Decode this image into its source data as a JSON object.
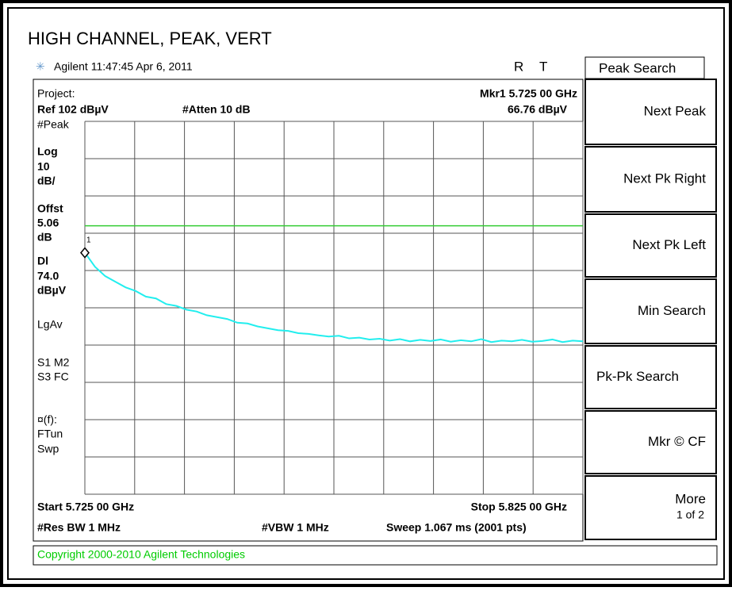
{
  "header": {
    "title": "HIGH CHANNEL, PEAK, VERT",
    "status": "Agilent 11:47:45 Apr 6, 2011",
    "flag_r": "R",
    "flag_t": "T"
  },
  "screen": {
    "project": "Project:",
    "ref": "Ref 102 dBµV",
    "atten": "#Atten 10 dB",
    "marker_freq": "Mkr1 5.725 00 GHz",
    "marker_level": "66.76 dBµV",
    "marker_label": "1",
    "side": [
      "#Peak",
      "Log",
      "10",
      "dB/",
      "Offst",
      "5.06",
      "dB",
      "Dl",
      "74.0",
      "dBµV",
      "LgAv",
      "S1  M2",
      "S3  FC",
      "¤(f):",
      "FTun",
      "Swp"
    ],
    "start": "Start 5.725 00 GHz",
    "stop": "Stop 5.825 00 GHz",
    "rbw": "#Res BW 1 MHz",
    "vbw": "#VBW 1 MHz",
    "sweep": "Sweep 1.067 ms (2001 pts)",
    "copyright": "Copyright 2000-2010 Agilent Technologies"
  },
  "trace": {
    "ylim": [
      2,
      102
    ],
    "display_line": 74.0,
    "marker": 66.76,
    "values": [
      66.8,
      63,
      60.5,
      59,
      57.5,
      56.5,
      55,
      54.5,
      53,
      52.5,
      51.5,
      51,
      50,
      49.5,
      49,
      48,
      47.8,
      47,
      46.5,
      46,
      45.8,
      45.2,
      45,
      44.6,
      44.3,
      44.5,
      43.8,
      44,
      43.5,
      43.7,
      43.2,
      43.6,
      43,
      43.4,
      43.1,
      43.5,
      42.9,
      43.3,
      43,
      43.6,
      42.8,
      43.2,
      43,
      43.4,
      42.9,
      43.1,
      43.5,
      42.8,
      43.2,
      43
    ]
  },
  "softkeys": {
    "menu": "Peak Search",
    "keys": [
      "Next Peak",
      "Next Pk Right",
      "Next Pk Left",
      "Min Search",
      "Pk-Pk Search",
      "Mkr © CF",
      "More"
    ],
    "more_page": "1 of 2"
  }
}
